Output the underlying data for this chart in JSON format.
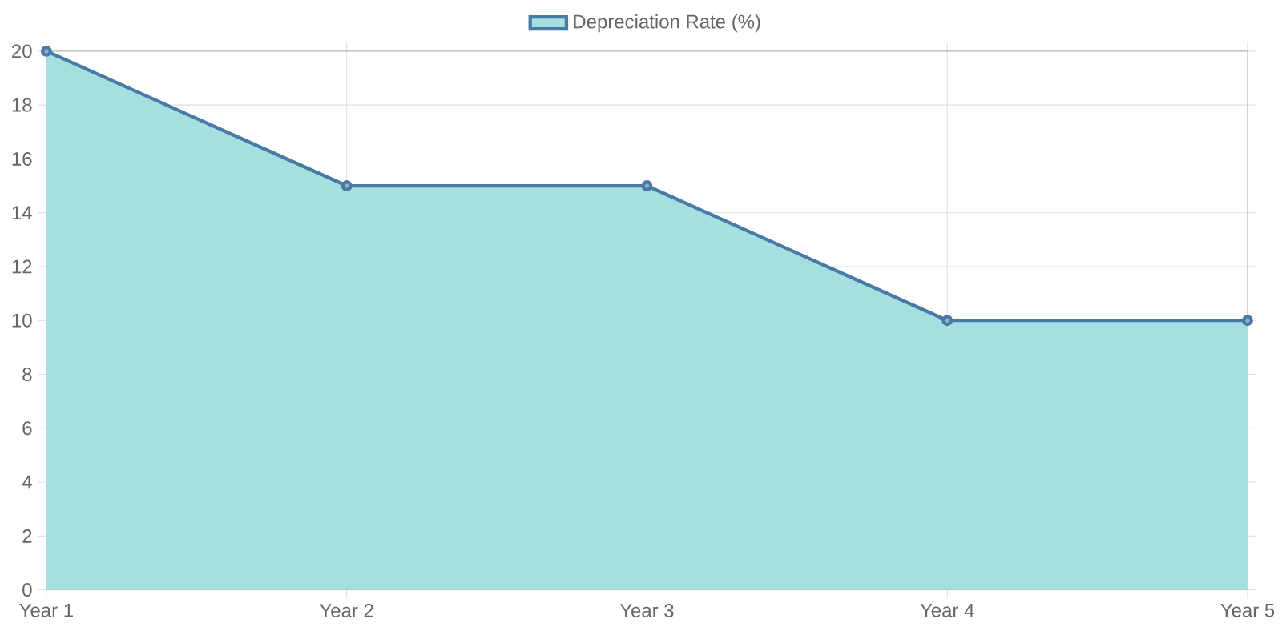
{
  "chart_data": {
    "type": "area",
    "categories": [
      "Year 1",
      "Year 2",
      "Year 3",
      "Year 4",
      "Year 5"
    ],
    "series": [
      {
        "name": "Depreciation Rate (%)",
        "color": "#a5dfdf",
        "values": [
          20,
          15,
          15,
          10,
          10
        ]
      }
    ],
    "ylim": [
      0,
      20
    ],
    "yticks": [
      0,
      2,
      4,
      6,
      8,
      10,
      12,
      14,
      16,
      18,
      20
    ],
    "grid": true,
    "legend": "top",
    "marker": "circle",
    "line_style": "solid"
  }
}
